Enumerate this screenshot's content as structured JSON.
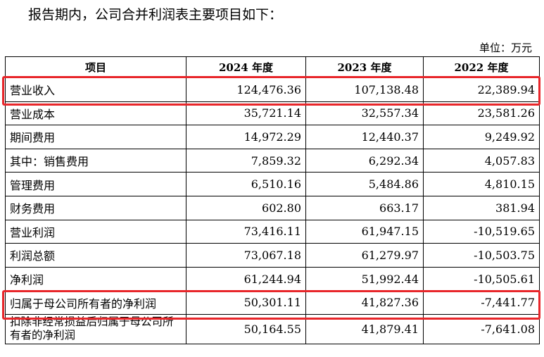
{
  "intro_text": "报告期内，公司合并利润表主要项目如下：",
  "unit_text": "单位：万元",
  "table": {
    "headers": [
      "项目",
      "2024 年度",
      "2023 年度",
      "2022 年度"
    ],
    "rows": [
      {
        "label": "营业收入",
        "values": [
          "124,476.36",
          "107,138.48",
          "22,389.94"
        ]
      },
      {
        "label": "营业成本",
        "values": [
          "35,721.14",
          "32,557.34",
          "23,581.26"
        ]
      },
      {
        "label": "期间费用",
        "values": [
          "14,972.29",
          "12,440.37",
          "9,249.92"
        ]
      },
      {
        "label": "其中：销售费用",
        "values": [
          "7,859.32",
          "6,292.34",
          "4,057.83"
        ]
      },
      {
        "label": "管理费用",
        "values": [
          "6,510.16",
          "5,484.86",
          "4,810.15"
        ]
      },
      {
        "label": "财务费用",
        "values": [
          "602.80",
          "663.17",
          "381.94"
        ]
      },
      {
        "label": "营业利润",
        "values": [
          "73,416.11",
          "61,947.15",
          "-10,519.65"
        ]
      },
      {
        "label": "利润总额",
        "values": [
          "73,067.18",
          "61,279.97",
          "-10,503.75"
        ]
      },
      {
        "label": "净利润",
        "values": [
          "61,244.94",
          "51,992.44",
          "-10,505.61"
        ]
      },
      {
        "label": "归属于母公司所有者的净利润",
        "values": [
          "50,301.11",
          "41,827.36",
          "-7,441.77"
        ]
      },
      {
        "label": "扣除非经常损益后归属于母公司所有者的净利润",
        "values": [
          "50,164.55",
          "41,879.41",
          "-7,641.08"
        ]
      }
    ]
  },
  "highlight_color": "#e8262a"
}
